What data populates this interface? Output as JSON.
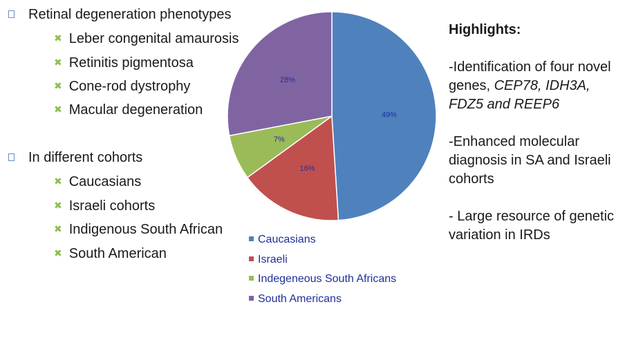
{
  "bullets": {
    "group1": {
      "title": "Retinal degeneration phenotypes",
      "items": [
        "Leber congenital amaurosis",
        "Retinitis pigmentosa",
        "Cone-rod dystrophy",
        "Macular degeneration"
      ]
    },
    "group2": {
      "title": "In different cohorts",
      "items": [
        "Caucasians",
        "Israeli cohorts",
        "Indigenous South African",
        "South American"
      ]
    }
  },
  "chart_data": {
    "type": "pie",
    "categories": [
      "Caucasians",
      "Israeli",
      "Indegeneous South Africans",
      "South Americans"
    ],
    "values": [
      49,
      16,
      7,
      28
    ],
    "labels": [
      "49%",
      "16%",
      "7%",
      "28%"
    ],
    "colors": [
      "#4f81bd",
      "#c0504d",
      "#9bbb59",
      "#8064a2"
    ],
    "legend": "bottom"
  },
  "highlights": {
    "title": "Highlights:",
    "p1_text": "-Identification of four novel genes, ",
    "genes": "CEP78, IDH3A, FDZ5 and REEP6",
    "p2": "-Enhanced molecular diagnosis in SA and Israeli cohorts",
    "p3": "- Large resource of genetic variation in IRDs"
  }
}
